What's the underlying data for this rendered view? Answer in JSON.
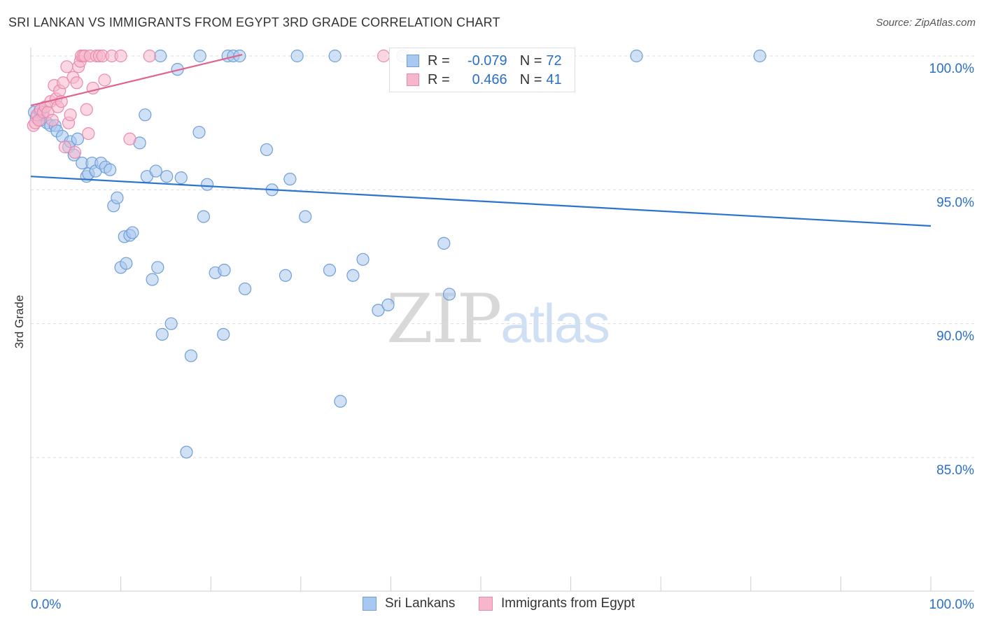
{
  "title": "SRI LANKAN VS IMMIGRANTS FROM EGYPT 3RD GRADE CORRELATION CHART",
  "source": "Source: ZipAtlas.com",
  "watermark": {
    "part1": "ZIP",
    "part2": "atlas"
  },
  "legend": {
    "rows": [
      {
        "r_label": "R = ",
        "r_value": "-0.079",
        "n_label": "N = ",
        "n_value": "72"
      },
      {
        "r_label": "R = ",
        "r_value": "0.466",
        "n_label": "N = ",
        "n_value": "41"
      }
    ]
  },
  "colors": {
    "blue_fill": "#a9c8ef",
    "blue_stroke": "#6f9ed8",
    "blue_line": "#2a74d0",
    "pink_fill": "#f6b6cc",
    "pink_stroke": "#e98aac",
    "pink_line": "#e0638d",
    "tick_label": "#2a6fc8",
    "grid": "#dddddd"
  },
  "chart_data": {
    "type": "scatter",
    "title": "SRI LANKAN VS IMMIGRANTS FROM EGYPT 3RD GRADE CORRELATION CHART",
    "ylabel": "3rd Grade",
    "xlabel": "",
    "xlim": [
      0,
      100
    ],
    "ylim": [
      80.5,
      100.75
    ],
    "x_tick_labels": [
      "0.0%",
      "100.0%"
    ],
    "y_ticks": [
      100,
      95,
      90,
      85
    ],
    "y_tick_labels": [
      "100.0%",
      "95.0%",
      "90.0%",
      "85.0%"
    ],
    "grid": true,
    "legend_position": "top-center",
    "series": [
      {
        "name": "Sri Lankans",
        "color": "#a9c8ef",
        "R": -0.079,
        "N": 72,
        "trend": {
          "x": [
            0,
            100
          ],
          "y": [
            95.5,
            93.65
          ]
        },
        "points": [
          [
            0.4,
            97.9
          ],
          [
            0.6,
            97.7
          ],
          [
            1.0,
            97.95
          ],
          [
            1.1,
            97.6
          ],
          [
            1.3,
            97.8
          ],
          [
            1.8,
            97.5
          ],
          [
            2.2,
            97.4
          ],
          [
            2.7,
            97.4
          ],
          [
            2.9,
            97.2
          ],
          [
            3.5,
            97.0
          ],
          [
            4.2,
            96.6
          ],
          [
            4.4,
            96.8
          ],
          [
            5.2,
            96.9
          ],
          [
            4.8,
            96.3
          ],
          [
            5.7,
            96.0
          ],
          [
            6.2,
            95.5
          ],
          [
            6.4,
            95.6
          ],
          [
            6.8,
            96.0
          ],
          [
            7.2,
            95.7
          ],
          [
            7.8,
            96.0
          ],
          [
            8.3,
            95.85
          ],
          [
            8.8,
            95.75
          ],
          [
            9.2,
            94.4
          ],
          [
            9.6,
            94.7
          ],
          [
            10.0,
            92.1
          ],
          [
            10.4,
            93.25
          ],
          [
            10.6,
            92.25
          ],
          [
            11.0,
            93.3
          ],
          [
            11.3,
            93.4
          ],
          [
            12.1,
            96.75
          ],
          [
            12.7,
            97.8
          ],
          [
            12.9,
            95.5
          ],
          [
            13.5,
            91.65
          ],
          [
            13.9,
            95.7
          ],
          [
            14.1,
            92.1
          ],
          [
            14.6,
            89.6
          ],
          [
            15.1,
            95.5
          ],
          [
            15.6,
            90.0
          ],
          [
            16.3,
            99.5
          ],
          [
            16.7,
            95.45
          ],
          [
            17.3,
            85.2
          ],
          [
            17.8,
            88.8
          ],
          [
            18.7,
            97.15
          ],
          [
            19.2,
            94.0
          ],
          [
            19.6,
            95.2
          ],
          [
            20.5,
            91.9
          ],
          [
            21.4,
            89.6
          ],
          [
            21.5,
            92.0
          ],
          [
            21.9,
            100.0
          ],
          [
            22.5,
            100.0
          ],
          [
            23.2,
            100.0
          ],
          [
            23.8,
            91.3
          ],
          [
            26.2,
            96.5
          ],
          [
            26.8,
            95.0
          ],
          [
            28.3,
            91.8
          ],
          [
            28.8,
            95.4
          ],
          [
            29.6,
            100.0
          ],
          [
            30.5,
            94.0
          ],
          [
            33.2,
            92.0
          ],
          [
            33.8,
            100.0
          ],
          [
            34.4,
            87.1
          ],
          [
            35.8,
            91.8
          ],
          [
            36.9,
            92.4
          ],
          [
            38.6,
            90.5
          ],
          [
            39.7,
            90.7
          ],
          [
            41.3,
            100.0
          ],
          [
            45.9,
            93.0
          ],
          [
            46.5,
            91.1
          ],
          [
            67.3,
            100.0
          ],
          [
            81.0,
            100.0
          ],
          [
            14.4,
            100.0
          ],
          [
            18.8,
            100.0
          ]
        ]
      },
      {
        "name": "Immigrants from Egypt",
        "color": "#f6b6cc",
        "R": 0.466,
        "N": 41,
        "trend": {
          "x": [
            0,
            23.5
          ],
          "y": [
            98.15,
            100.05
          ]
        },
        "points": [
          [
            0.3,
            97.4
          ],
          [
            0.5,
            97.5
          ],
          [
            0.7,
            97.8
          ],
          [
            0.9,
            97.6
          ],
          [
            1.1,
            98.0
          ],
          [
            1.4,
            97.9
          ],
          [
            1.6,
            98.1
          ],
          [
            1.9,
            97.9
          ],
          [
            2.2,
            98.3
          ],
          [
            2.4,
            97.6
          ],
          [
            2.6,
            98.9
          ],
          [
            2.8,
            98.4
          ],
          [
            3.0,
            98.1
          ],
          [
            3.2,
            98.7
          ],
          [
            3.4,
            98.3
          ],
          [
            3.6,
            99.0
          ],
          [
            3.8,
            96.6
          ],
          [
            4.0,
            99.6
          ],
          [
            4.2,
            97.5
          ],
          [
            4.4,
            97.8
          ],
          [
            4.7,
            99.2
          ],
          [
            4.9,
            96.4
          ],
          [
            5.1,
            99.0
          ],
          [
            5.3,
            99.6
          ],
          [
            5.5,
            99.8
          ],
          [
            5.6,
            100.0
          ],
          [
            5.8,
            100.0
          ],
          [
            6.0,
            100.0
          ],
          [
            6.2,
            98.0
          ],
          [
            6.4,
            97.1
          ],
          [
            6.6,
            100.0
          ],
          [
            6.9,
            98.8
          ],
          [
            7.3,
            100.0
          ],
          [
            7.6,
            100.0
          ],
          [
            8.0,
            100.0
          ],
          [
            8.2,
            99.1
          ],
          [
            9.0,
            100.0
          ],
          [
            10.0,
            100.0
          ],
          [
            11.0,
            96.9
          ],
          [
            13.2,
            100.0
          ],
          [
            39.2,
            100.0
          ]
        ]
      }
    ]
  }
}
